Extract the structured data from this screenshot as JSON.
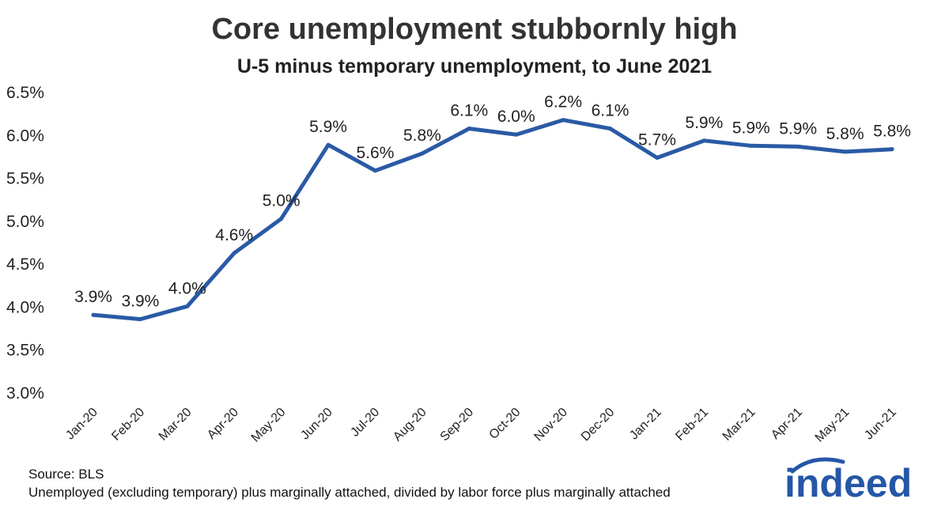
{
  "chart_data": {
    "type": "line",
    "title": "Core unemployment stubbornly high",
    "subtitle": "U-5 minus temporary unemployment, to June 2021",
    "xlabel": "",
    "ylabel": "",
    "ylim": [
      3.0,
      6.5
    ],
    "y_ticks": [
      "3.0%",
      "3.5%",
      "4.0%",
      "4.5%",
      "5.0%",
      "5.5%",
      "6.0%",
      "6.5%"
    ],
    "grid": false,
    "categories": [
      "Jan-20",
      "Feb-20",
      "Mar-20",
      "Apr-20",
      "May-20",
      "Jun-20",
      "Jul-20",
      "Aug-20",
      "Sep-20",
      "Oct-20",
      "Nov-20",
      "Dec-20",
      "Jan-21",
      "Feb-21",
      "Mar-21",
      "Apr-21",
      "May-21",
      "Jun-21"
    ],
    "series": [
      {
        "color": "#2a5aa5",
        "values": [
          3.91,
          3.86,
          4.01,
          4.63,
          5.03,
          5.89,
          5.59,
          5.79,
          6.08,
          6.01,
          6.18,
          6.08,
          5.74,
          5.94,
          5.88,
          5.87,
          5.81,
          5.84
        ],
        "labels": [
          "3.9%",
          "3.9%",
          "4.0%",
          "4.6%",
          "5.0%",
          "5.9%",
          "5.6%",
          "5.8%",
          "6.1%",
          "6.0%",
          "6.2%",
          "6.1%",
          "5.7%",
          "5.9%",
          "5.9%",
          "5.9%",
          "5.8%",
          "5.8%"
        ]
      }
    ]
  },
  "footer": {
    "source": "Source: BLS",
    "note": "Unemployed (excluding temporary) plus marginally attached, divided by labor force plus marginally attached"
  },
  "logo": {
    "text": "indeed",
    "color": "#2557a7"
  }
}
